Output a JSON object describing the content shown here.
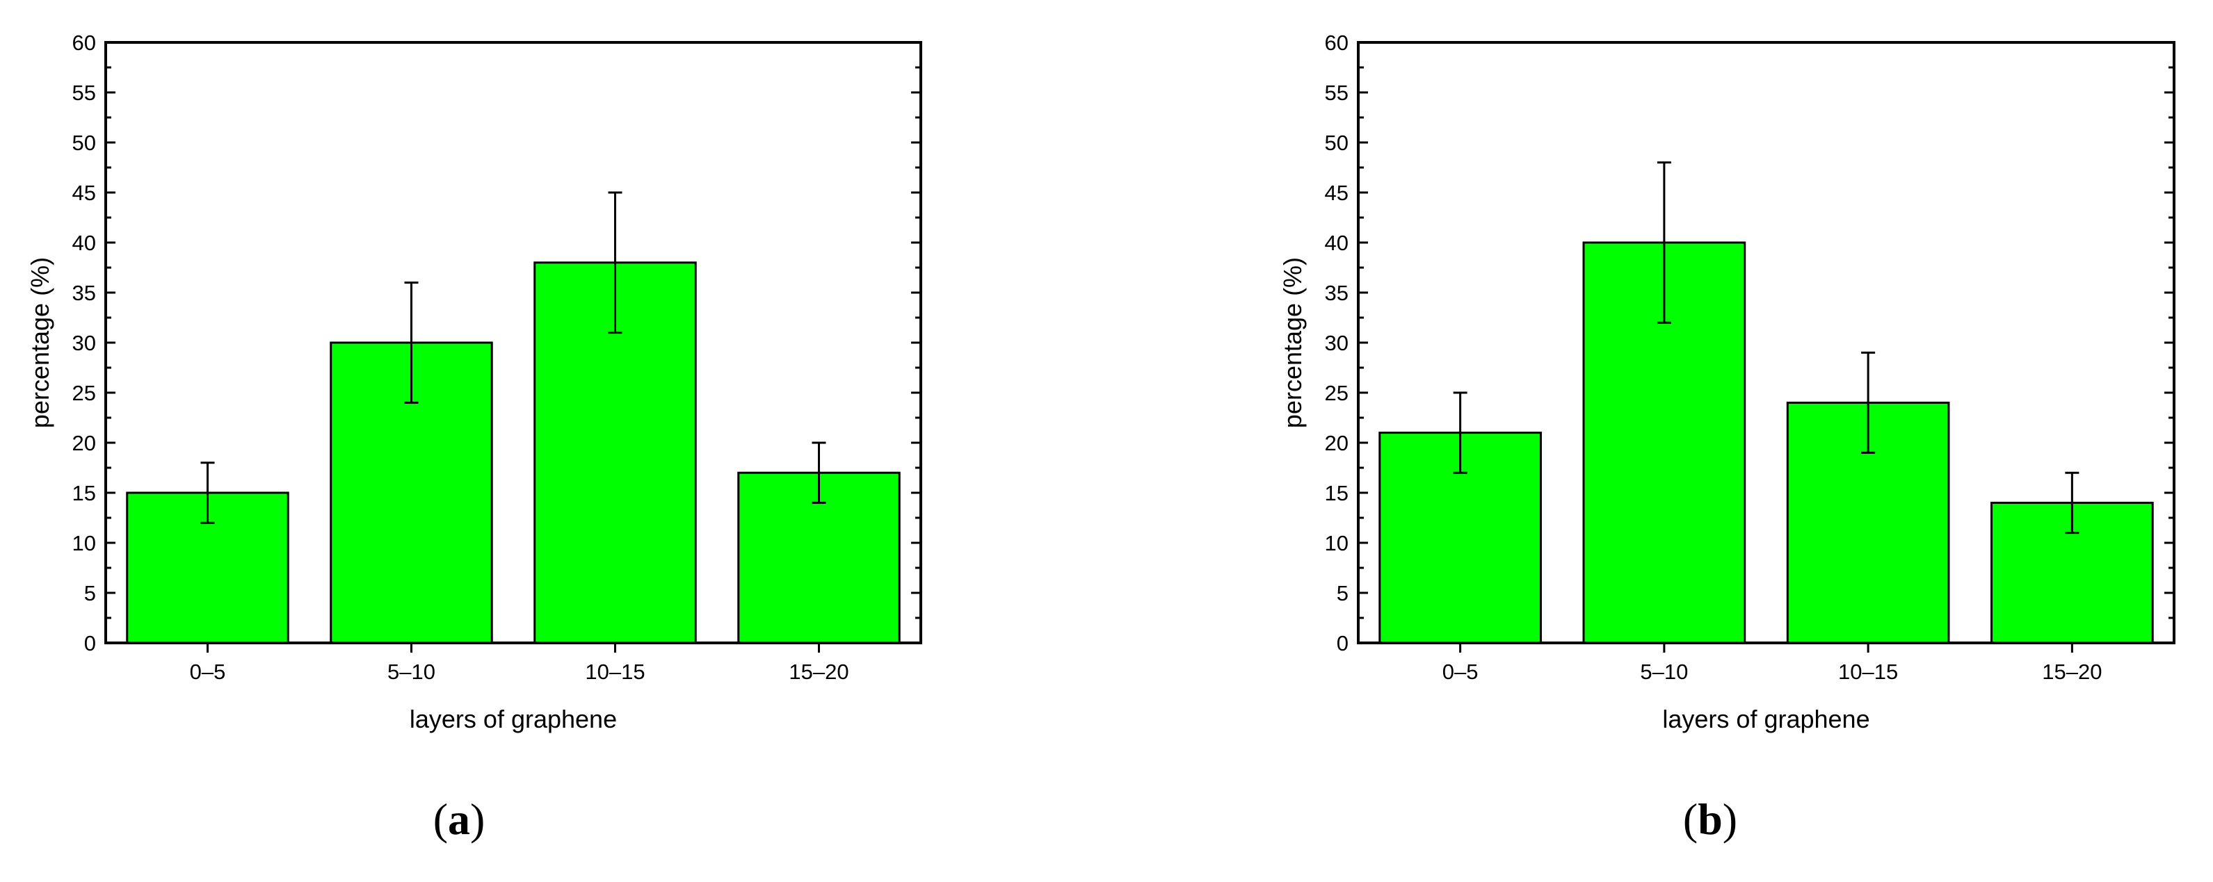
{
  "chart_data": [
    {
      "type": "bar",
      "panel_label": "a",
      "categories": [
        "0–5",
        "5–10",
        "10–15",
        "15–20"
      ],
      "values": [
        15,
        30,
        38,
        17
      ],
      "errors": [
        3,
        6,
        7,
        3
      ],
      "xlabel": "layers of graphene",
      "ylabel": "percentage (%)",
      "ylim": [
        0,
        60
      ],
      "yticks": [
        0,
        5,
        10,
        15,
        20,
        25,
        30,
        35,
        40,
        45,
        50,
        55,
        60
      ],
      "grid": false,
      "bar_color": "#00ff00"
    },
    {
      "type": "bar",
      "panel_label": "b",
      "categories": [
        "0–5",
        "5–10",
        "10–15",
        "15–20"
      ],
      "values": [
        21,
        40,
        24,
        14
      ],
      "errors": [
        4,
        8,
        5,
        3
      ],
      "xlabel": "layers of graphene",
      "ylabel": "percentage (%)",
      "ylim": [
        0,
        60
      ],
      "yticks": [
        0,
        5,
        10,
        15,
        20,
        25,
        30,
        35,
        40,
        45,
        50,
        55,
        60
      ],
      "grid": false,
      "bar_color": "#00ff00"
    }
  ]
}
